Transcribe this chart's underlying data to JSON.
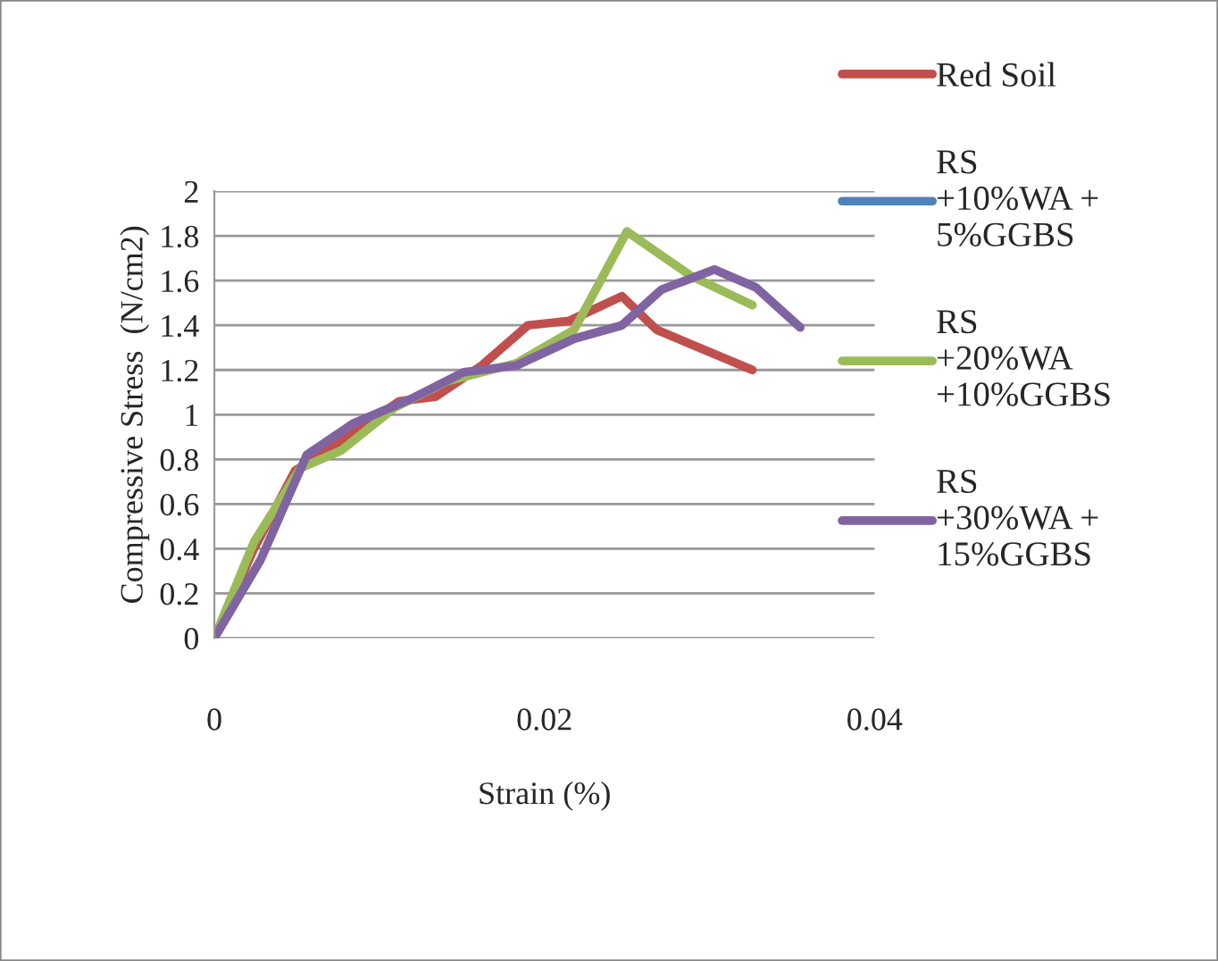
{
  "chart_data": {
    "type": "line",
    "xlabel": "Strain (%)",
    "ylabel": "Compressive Stress  (N/cm2)",
    "xlim": [
      0,
      0.04
    ],
    "xticks": [
      0,
      0.02,
      0.04
    ],
    "ylim": [
      0,
      2
    ],
    "yticks": [
      0,
      0.2,
      0.4,
      0.6,
      0.8,
      1,
      1.2,
      1.4,
      1.6,
      1.8,
      2
    ],
    "grid": "y",
    "legend": "right",
    "series": [
      {
        "name": "Red Soil",
        "color": "#c0504d",
        "x": [
          0,
          0.0024,
          0.0049,
          0.0077,
          0.0112,
          0.0134,
          0.0162,
          0.019,
          0.0215,
          0.0247,
          0.0268,
          0.0326
        ],
        "values": [
          0,
          0.4,
          0.75,
          0.88,
          1.06,
          1.08,
          1.22,
          1.4,
          1.42,
          1.53,
          1.38,
          1.2
        ]
      },
      {
        "name": "RS\n+10%WA +\n5%GGBS",
        "color": "#4f81bd"
      },
      {
        "name": "RS\n+20%WA\n+10%GGBS",
        "color": "#9bbb59",
        "x": [
          0,
          0.0024,
          0.0052,
          0.0077,
          0.0109,
          0.0141,
          0.0183,
          0.0218,
          0.025,
          0.0289,
          0.0326
        ],
        "values": [
          0,
          0.43,
          0.76,
          0.84,
          1.03,
          1.15,
          1.23,
          1.38,
          1.82,
          1.62,
          1.49
        ]
      },
      {
        "name": "RS\n+30%WA +\n15%GGBS",
        "color": "#8064a2",
        "x": [
          0,
          0.0028,
          0.0056,
          0.0084,
          0.0119,
          0.0151,
          0.0183,
          0.0218,
          0.0247,
          0.0271,
          0.0303,
          0.0328,
          0.0355
        ],
        "values": [
          0,
          0.35,
          0.82,
          0.96,
          1.07,
          1.19,
          1.22,
          1.34,
          1.4,
          1.56,
          1.65,
          1.57,
          1.39
        ]
      }
    ]
  }
}
